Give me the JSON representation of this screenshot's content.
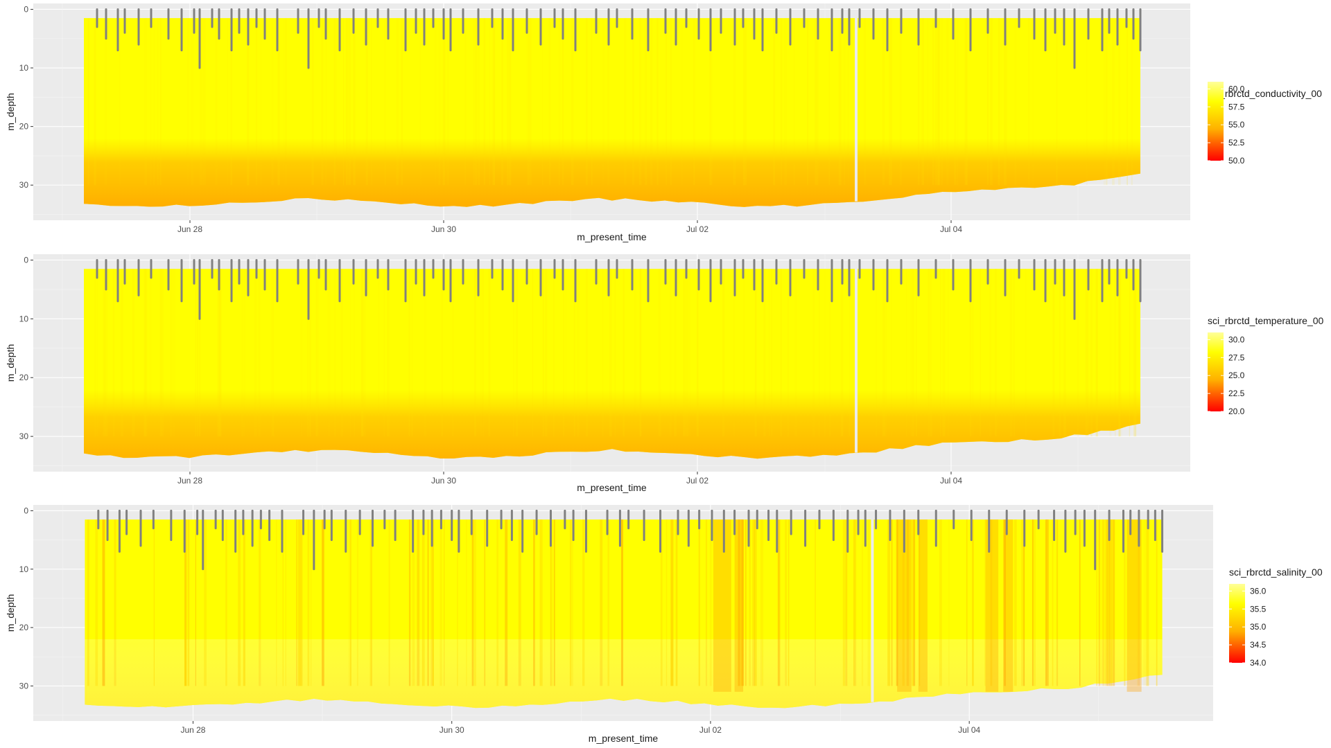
{
  "chart_data": [
    {
      "type": "scatter",
      "xlabel": "m_present_time",
      "ylabel": "m_depth",
      "x_ticks": [
        "Jun 28",
        "Jun 30",
        "Jul 02",
        "Jul 04"
      ],
      "y_ticks": [
        0,
        10,
        20,
        30
      ],
      "ylim": [
        36,
        -1
      ],
      "y_reversed": true,
      "legend": {
        "title": "sci_rbrctd_conductivity_00",
        "labels": [
          "60.0",
          "57.5",
          "55.0",
          "52.5",
          "50.0"
        ],
        "range": [
          50,
          61
        ],
        "position": "right"
      },
      "colors": {
        "high": "#ffff00",
        "mid": "#ffb000",
        "low": "#ff0000",
        "na": "#808080",
        "panel": "#ebebeb"
      },
      "max_depth_start": 33,
      "max_depth_end": 28,
      "lower_band_value": 57.5
    },
    {
      "type": "scatter",
      "xlabel": "m_present_time",
      "ylabel": "m_depth",
      "x_ticks": [
        "Jun 28",
        "Jun 30",
        "Jul 02",
        "Jul 04"
      ],
      "y_ticks": [
        0,
        10,
        20,
        30
      ],
      "ylim": [
        36,
        -1
      ],
      "y_reversed": true,
      "legend": {
        "title": "sci_rbrctd_temperature_00",
        "labels": [
          "30.0",
          "27.5",
          "25.0",
          "22.5",
          "20.0"
        ],
        "range": [
          20,
          31
        ],
        "position": "right"
      },
      "colors": {
        "high": "#ffff00",
        "mid": "#ffb000",
        "low": "#ff0000",
        "na": "#808080",
        "panel": "#ebebeb"
      },
      "max_depth_start": 33,
      "max_depth_end": 28,
      "lower_band_value": 27.5
    },
    {
      "type": "scatter",
      "xlabel": "m_present_time",
      "ylabel": "m_depth",
      "x_ticks": [
        "Jun 28",
        "Jun 30",
        "Jul 02",
        "Jul 04"
      ],
      "y_ticks": [
        0,
        10,
        20,
        30
      ],
      "ylim": [
        36,
        -1
      ],
      "y_reversed": true,
      "legend": {
        "title": "sci_rbrctd_salinity_00",
        "labels": [
          "36.0",
          "35.5",
          "35.0",
          "34.5",
          "34.0"
        ],
        "range": [
          34,
          36.2
        ],
        "position": "right"
      },
      "colors": {
        "high": "#ffff00",
        "mid": "#ffb000",
        "low": "#ff0000",
        "na": "#808080",
        "panel": "#ebebeb"
      },
      "max_depth_start": 33,
      "max_depth_end": 28,
      "lower_band_value": 36.0
    }
  ]
}
